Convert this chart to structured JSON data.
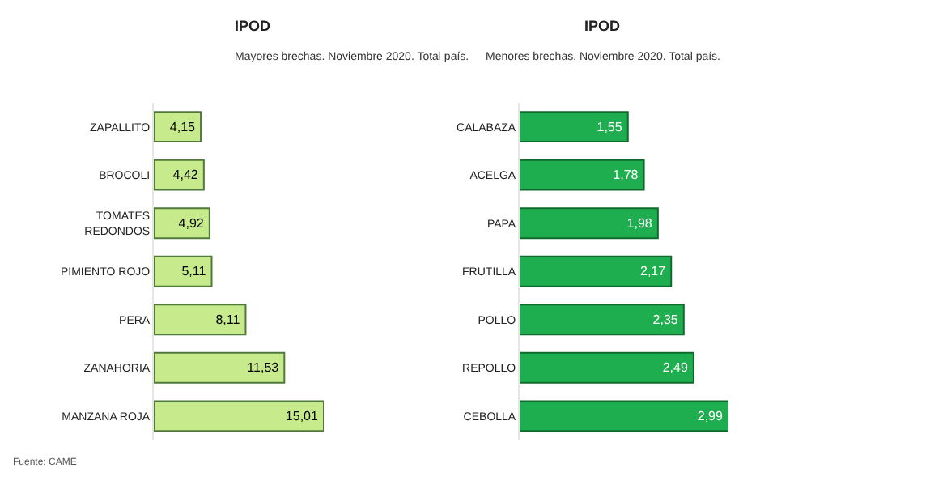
{
  "chart_data": [
    {
      "type": "bar",
      "orientation": "horizontal",
      "title": "IPOD",
      "subtitle": "Mayores brechas. Noviembre 2020. Total país.",
      "categories": [
        "ZAPALLITO",
        "BROCOLI",
        "TOMATES REDONDOS",
        "PIMIENTO ROJO",
        "PERA",
        "ZANAHORIA",
        "MANZANA ROJA"
      ],
      "values": [
        4.15,
        4.42,
        4.92,
        5.11,
        8.11,
        11.53,
        15.01
      ],
      "value_labels": [
        "4,15",
        "4,42",
        "4,92",
        "5,11",
        "8,11",
        "11,53",
        "15,01"
      ],
      "color": "#c6ea8c",
      "tick_labels": "y",
      "annotations": [
        "Fuente: CAME"
      ]
    },
    {
      "type": "bar",
      "orientation": "horizontal",
      "title": "IPOD",
      "subtitle": "Menores brechas. Noviembre 2020. Total país.",
      "categories": [
        "CALABAZA",
        "ACELGA",
        "PAPA",
        "FRUTILLA",
        "POLLO",
        "REPOLLO",
        "CEBOLLA"
      ],
      "values": [
        1.55,
        1.78,
        1.98,
        2.17,
        2.35,
        2.49,
        2.99
      ],
      "value_labels": [
        "1,55",
        "1,78",
        "1,98",
        "2,17",
        "2,35",
        "2,49",
        "2,99"
      ],
      "color": "#1fae4f",
      "tick_labels": "y"
    }
  ]
}
